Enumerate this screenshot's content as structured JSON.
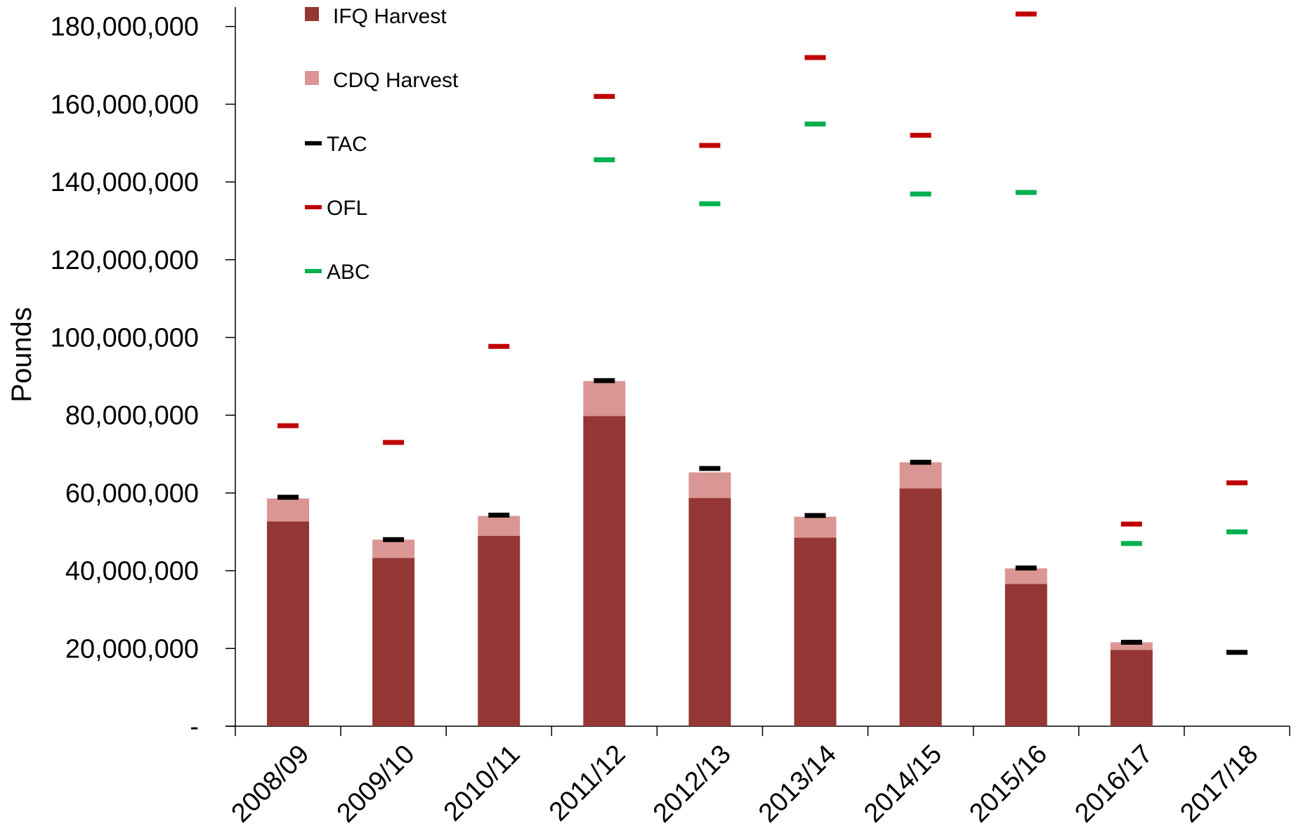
{
  "chart_data": {
    "type": "bar",
    "stacked": true,
    "title": "",
    "xlabel": "",
    "ylabel": "Pounds",
    "ylim": [
      0,
      185000000
    ],
    "yticks": [
      0,
      20000000,
      40000000,
      60000000,
      80000000,
      100000000,
      120000000,
      140000000,
      160000000,
      180000000
    ],
    "ytick_labels": [
      "-",
      "20,000,000",
      "40,000,000",
      "60,000,000",
      "80,000,000",
      "100,000,000",
      "120,000,000",
      "140,000,000",
      "160,000,000",
      "180,000,000"
    ],
    "grid": false,
    "legend_position": "top-left",
    "categories": [
      "2008/09",
      "2009/10",
      "2010/11",
      "2011/12",
      "2012/13",
      "2013/14",
      "2014/15",
      "2015/16",
      "2016/17",
      "2017/18"
    ],
    "series": [
      {
        "name": "IFQ Harvest",
        "kind": "bar",
        "color": "#943634",
        "values": [
          52700000,
          43300000,
          49000000,
          79800000,
          58700000,
          48500000,
          61200000,
          36600000,
          19600000,
          0
        ]
      },
      {
        "name": "CDQ Harvest",
        "kind": "bar",
        "color": "#DA9694",
        "values": [
          5900000,
          4700000,
          5100000,
          9000000,
          6600000,
          5400000,
          6700000,
          4000000,
          2000000,
          0
        ]
      },
      {
        "name": "TAC",
        "kind": "marker",
        "color": "#000000",
        "values": [
          58900000,
          48000000,
          54300000,
          88900000,
          66300000,
          54200000,
          67900000,
          40700000,
          21600000,
          19000000
        ]
      },
      {
        "name": "OFL",
        "kind": "marker",
        "color": "#C00000",
        "values": [
          77300000,
          73000000,
          97700000,
          162000000,
          149400000,
          172000000,
          152000000,
          183200000,
          52000000,
          62600000
        ]
      },
      {
        "name": "ABC",
        "kind": "marker",
        "color": "#00B050",
        "values": [
          null,
          null,
          null,
          145700000,
          134400000,
          154900000,
          136900000,
          137300000,
          47000000,
          50000000
        ]
      }
    ]
  }
}
